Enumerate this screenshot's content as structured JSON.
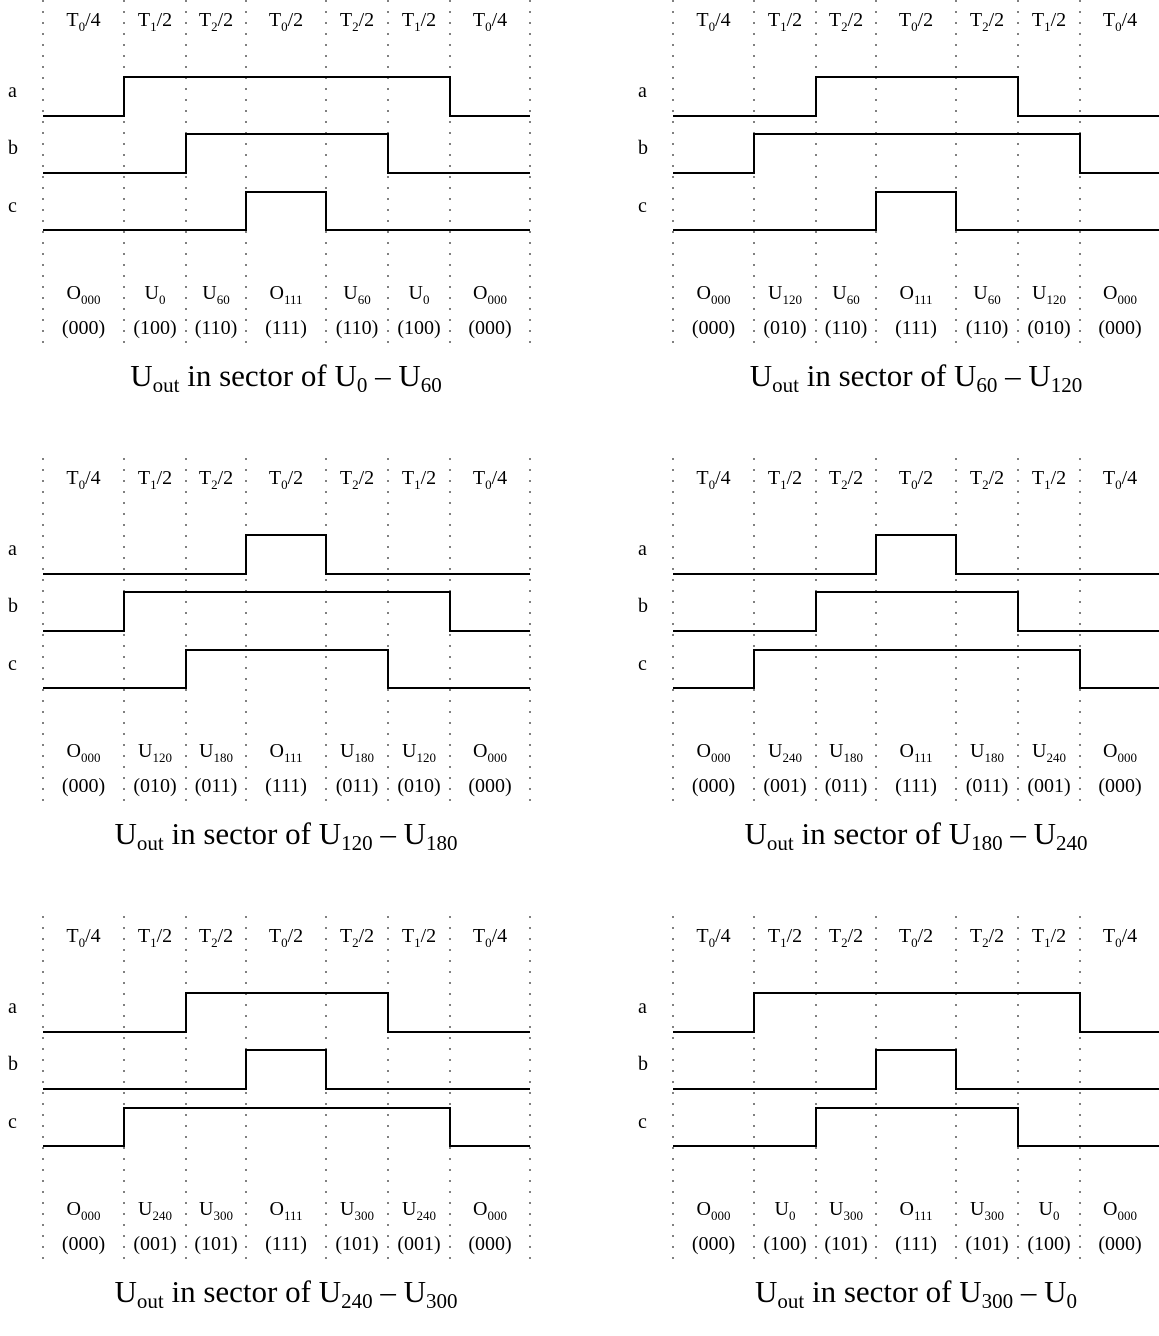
{
  "signals": [
    "a",
    "b",
    "c"
  ],
  "time_segments": [
    {
      "main": "T",
      "sub": "0",
      "tail": "/4"
    },
    {
      "main": "T",
      "sub": "1",
      "tail": "/2"
    },
    {
      "main": "T",
      "sub": "2",
      "tail": "/2"
    },
    {
      "main": "T",
      "sub": "0",
      "tail": "/2"
    },
    {
      "main": "T",
      "sub": "2",
      "tail": "/2"
    },
    {
      "main": "T",
      "sub": "1",
      "tail": "/2"
    },
    {
      "main": "T",
      "sub": "0",
      "tail": "/4"
    }
  ],
  "panels": [
    {
      "title": {
        "prefix": "U",
        "prefix_sub": "out",
        "middle": " in sector of ",
        "from": "U",
        "from_sub": "0",
        "dash": " – ",
        "to": "U",
        "to_sub": "60"
      },
      "a": [
        0,
        1,
        1,
        1,
        1,
        1,
        0
      ],
      "b": [
        0,
        0,
        1,
        1,
        1,
        0,
        0
      ],
      "c": [
        0,
        0,
        0,
        1,
        0,
        0,
        0
      ],
      "vectors": [
        {
          "main": "O",
          "sub": "000"
        },
        {
          "main": "U",
          "sub": "0"
        },
        {
          "main": "U",
          "sub": "60"
        },
        {
          "main": "O",
          "sub": "111"
        },
        {
          "main": "U",
          "sub": "60"
        },
        {
          "main": "U",
          "sub": "0"
        },
        {
          "main": "O",
          "sub": "000"
        }
      ],
      "codes": [
        "(000)",
        "(100)",
        "(110)",
        "(111)",
        "(110)",
        "(100)",
        "(000)"
      ]
    },
    {
      "title": {
        "prefix": "U",
        "prefix_sub": "out",
        "middle": " in sector of ",
        "from": "U",
        "from_sub": "60",
        "dash": " – ",
        "to": "U",
        "to_sub": "120"
      },
      "a": [
        0,
        0,
        1,
        1,
        1,
        0,
        0
      ],
      "b": [
        0,
        1,
        1,
        1,
        1,
        1,
        0
      ],
      "c": [
        0,
        0,
        0,
        1,
        0,
        0,
        0
      ],
      "vectors": [
        {
          "main": "O",
          "sub": "000"
        },
        {
          "main": "U",
          "sub": "120"
        },
        {
          "main": "U",
          "sub": "60"
        },
        {
          "main": "O",
          "sub": "111"
        },
        {
          "main": "U",
          "sub": "60"
        },
        {
          "main": "U",
          "sub": "120"
        },
        {
          "main": "O",
          "sub": "000"
        }
      ],
      "codes": [
        "(000)",
        "(010)",
        "(110)",
        "(111)",
        "(110)",
        "(010)",
        "(000)"
      ]
    },
    {
      "title": {
        "prefix": "U",
        "prefix_sub": "out",
        "middle": " in sector of ",
        "from": "U",
        "from_sub": "120",
        "dash": " – ",
        "to": "U",
        "to_sub": "180"
      },
      "a": [
        0,
        0,
        0,
        1,
        0,
        0,
        0
      ],
      "b": [
        0,
        1,
        1,
        1,
        1,
        1,
        0
      ],
      "c": [
        0,
        0,
        1,
        1,
        1,
        0,
        0
      ],
      "vectors": [
        {
          "main": "O",
          "sub": "000"
        },
        {
          "main": "U",
          "sub": "120"
        },
        {
          "main": "U",
          "sub": "180"
        },
        {
          "main": "O",
          "sub": "111"
        },
        {
          "main": "U",
          "sub": "180"
        },
        {
          "main": "U",
          "sub": "120"
        },
        {
          "main": "O",
          "sub": "000"
        }
      ],
      "codes": [
        "(000)",
        "(010)",
        "(011)",
        "(111)",
        "(011)",
        "(010)",
        "(000)"
      ]
    },
    {
      "title": {
        "prefix": "U",
        "prefix_sub": "out",
        "middle": " in sector of ",
        "from": "U",
        "from_sub": "180",
        "dash": " – ",
        "to": "U",
        "to_sub": "240"
      },
      "a": [
        0,
        0,
        0,
        1,
        0,
        0,
        0
      ],
      "b": [
        0,
        0,
        1,
        1,
        1,
        0,
        0
      ],
      "c": [
        0,
        1,
        1,
        1,
        1,
        1,
        0
      ],
      "vectors": [
        {
          "main": "O",
          "sub": "000"
        },
        {
          "main": "U",
          "sub": "240"
        },
        {
          "main": "U",
          "sub": "180"
        },
        {
          "main": "O",
          "sub": "111"
        },
        {
          "main": "U",
          "sub": "180"
        },
        {
          "main": "U",
          "sub": "240"
        },
        {
          "main": "O",
          "sub": "000"
        }
      ],
      "codes": [
        "(000)",
        "(001)",
        "(011)",
        "(111)",
        "(011)",
        "(001)",
        "(000)"
      ]
    },
    {
      "title": {
        "prefix": "U",
        "prefix_sub": "out",
        "middle": " in sector of ",
        "from": "U",
        "from_sub": "240",
        "dash": " – ",
        "to": "U",
        "to_sub": "300"
      },
      "a": [
        0,
        0,
        1,
        1,
        1,
        0,
        0
      ],
      "b": [
        0,
        0,
        0,
        1,
        0,
        0,
        0
      ],
      "c": [
        0,
        1,
        1,
        1,
        1,
        1,
        0
      ],
      "vectors": [
        {
          "main": "O",
          "sub": "000"
        },
        {
          "main": "U",
          "sub": "240"
        },
        {
          "main": "U",
          "sub": "300"
        },
        {
          "main": "O",
          "sub": "111"
        },
        {
          "main": "U",
          "sub": "300"
        },
        {
          "main": "U",
          "sub": "240"
        },
        {
          "main": "O",
          "sub": "000"
        }
      ],
      "codes": [
        "(000)",
        "(001)",
        "(101)",
        "(111)",
        "(101)",
        "(001)",
        "(000)"
      ]
    },
    {
      "title": {
        "prefix": "U",
        "prefix_sub": "out",
        "middle": " in sector of ",
        "from": "U",
        "from_sub": "300",
        "dash": " – ",
        "to": "U",
        "to_sub": "0"
      },
      "a": [
        0,
        1,
        1,
        1,
        1,
        1,
        0
      ],
      "b": [
        0,
        0,
        0,
        1,
        0,
        0,
        0
      ],
      "c": [
        0,
        0,
        1,
        1,
        1,
        0,
        0
      ],
      "vectors": [
        {
          "main": "O",
          "sub": "000"
        },
        {
          "main": "U",
          "sub": "0"
        },
        {
          "main": "U",
          "sub": "300"
        },
        {
          "main": "O",
          "sub": "111"
        },
        {
          "main": "U",
          "sub": "300"
        },
        {
          "main": "U",
          "sub": "0"
        },
        {
          "main": "O",
          "sub": "000"
        }
      ],
      "codes": [
        "(000)",
        "(100)",
        "(101)",
        "(111)",
        "(101)",
        "(100)",
        "(000)"
      ]
    }
  ]
}
